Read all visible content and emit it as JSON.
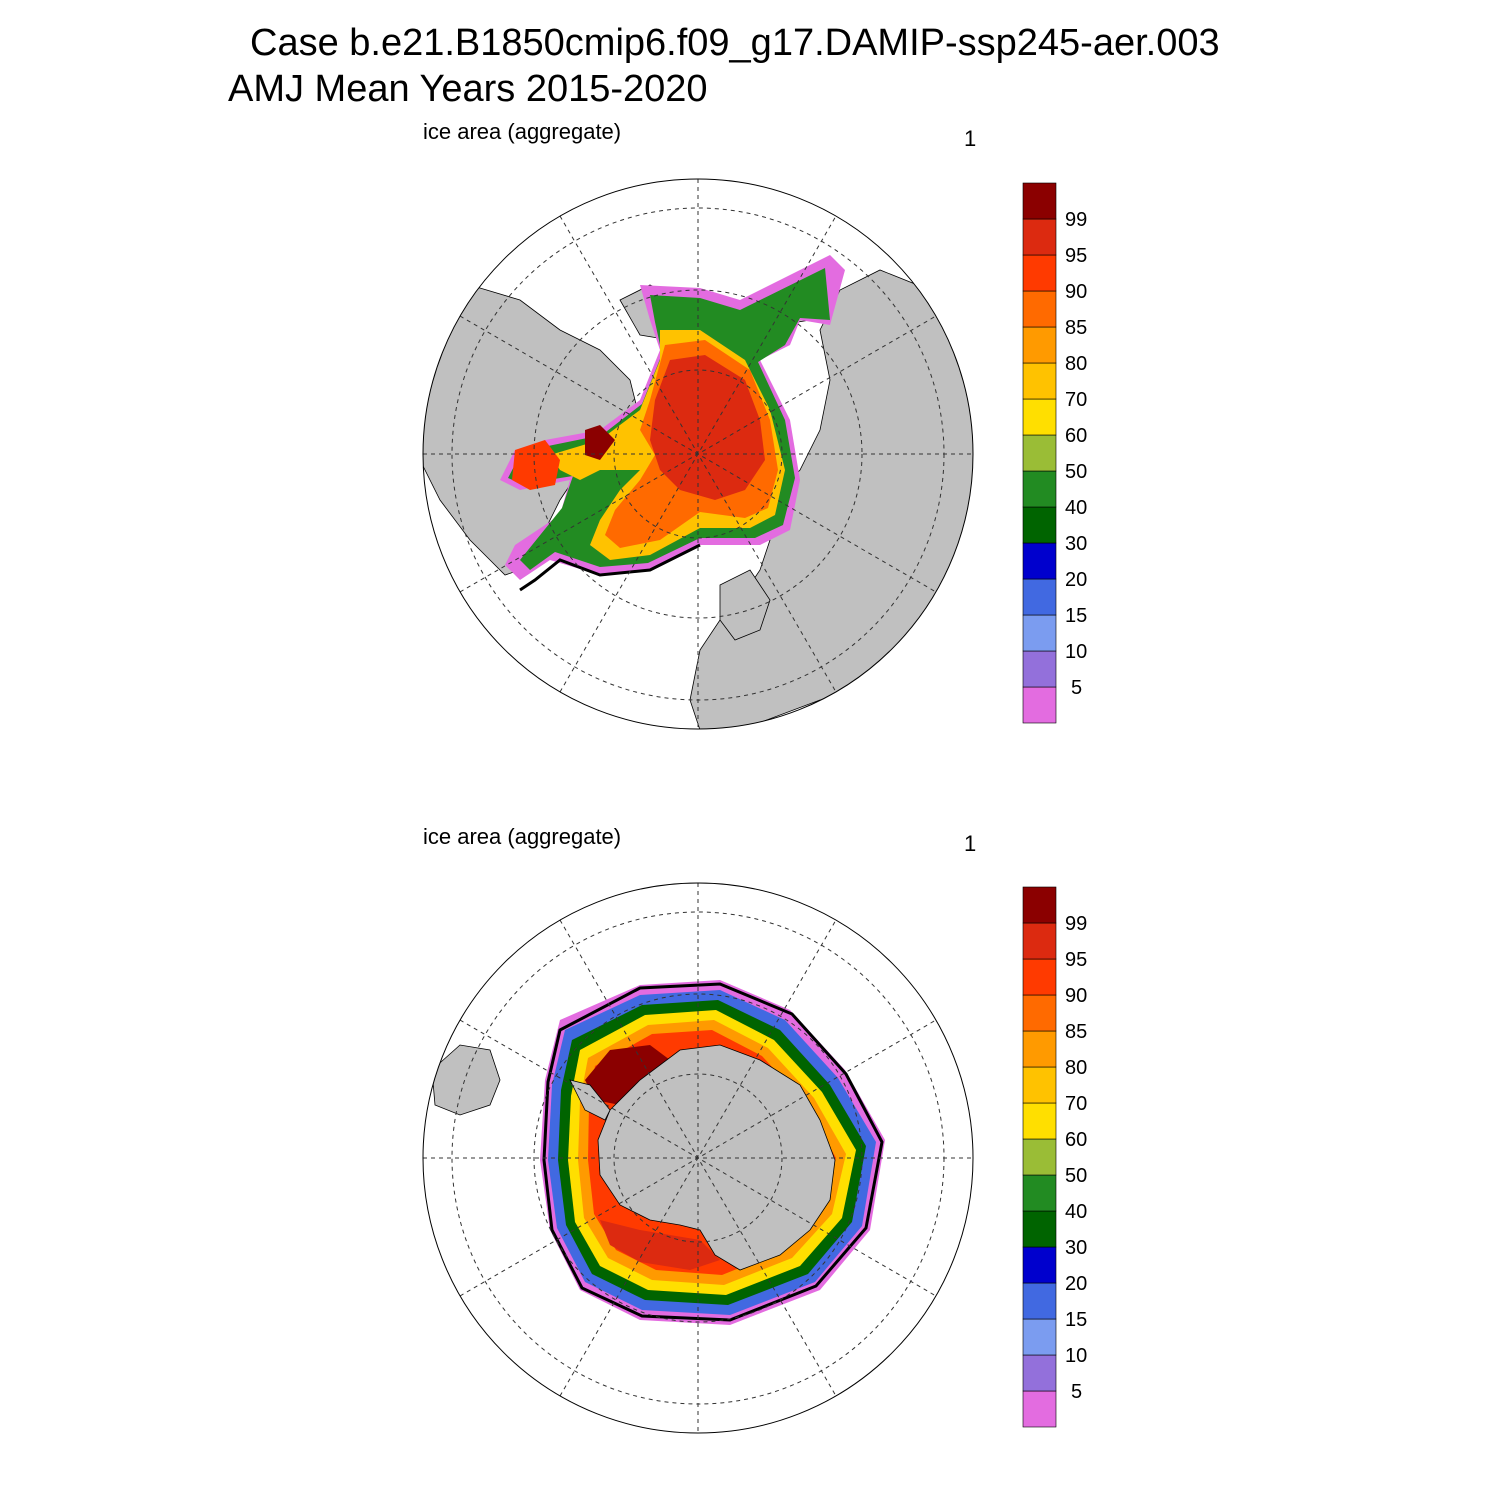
{
  "header": {
    "case_title": "Case b.e21.B1850cmip6.f09_g17.DAMIP-ssp245-aer.003",
    "period_title": "AMJ Mean   Years 2015-2020"
  },
  "panels": [
    {
      "hemisphere": "north",
      "label": "ice area  (aggregate)",
      "index": "1"
    },
    {
      "hemisphere": "south",
      "label": "ice area  (aggregate)",
      "index": "1"
    }
  ],
  "colorbar": {
    "labels": [
      "5",
      "10",
      "15",
      "20",
      "30",
      "40",
      "50",
      "60",
      "70",
      "80",
      "85",
      "90",
      "95",
      "99"
    ],
    "colors": [
      "#e36ce0",
      "#9370db",
      "#7b9cf0",
      "#4169e1",
      "#0000cd",
      "#006400",
      "#228b22",
      "#9abd36",
      "#ffdf00",
      "#ffc200",
      "#ff9a00",
      "#ff6a00",
      "#ff3a00",
      "#dc2a10",
      "#8b0000"
    ]
  },
  "colors": {
    "land": "#c0c0c0",
    "ocean": "#ffffff",
    "ice_core": "#dc2a10",
    "ice_max": "#8b0000"
  }
}
